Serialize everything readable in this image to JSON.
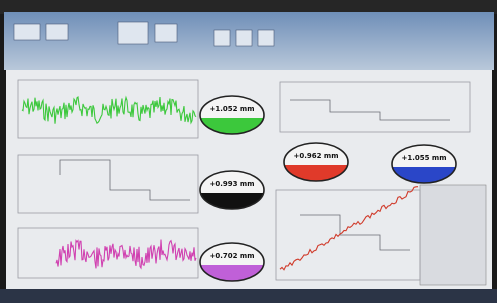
{
  "readouts": [
    {
      "label": "+1.052 mm",
      "color": "#3cc83c"
    },
    {
      "label": "+0.962 mm",
      "color": "#e03a2a"
    },
    {
      "label": "+1.055 mm",
      "color": "#2a46c8"
    },
    {
      "label": "+0.993 mm",
      "color": "#111111"
    },
    {
      "label": "+0.702 mm",
      "color": "#c060d8"
    }
  ]
}
